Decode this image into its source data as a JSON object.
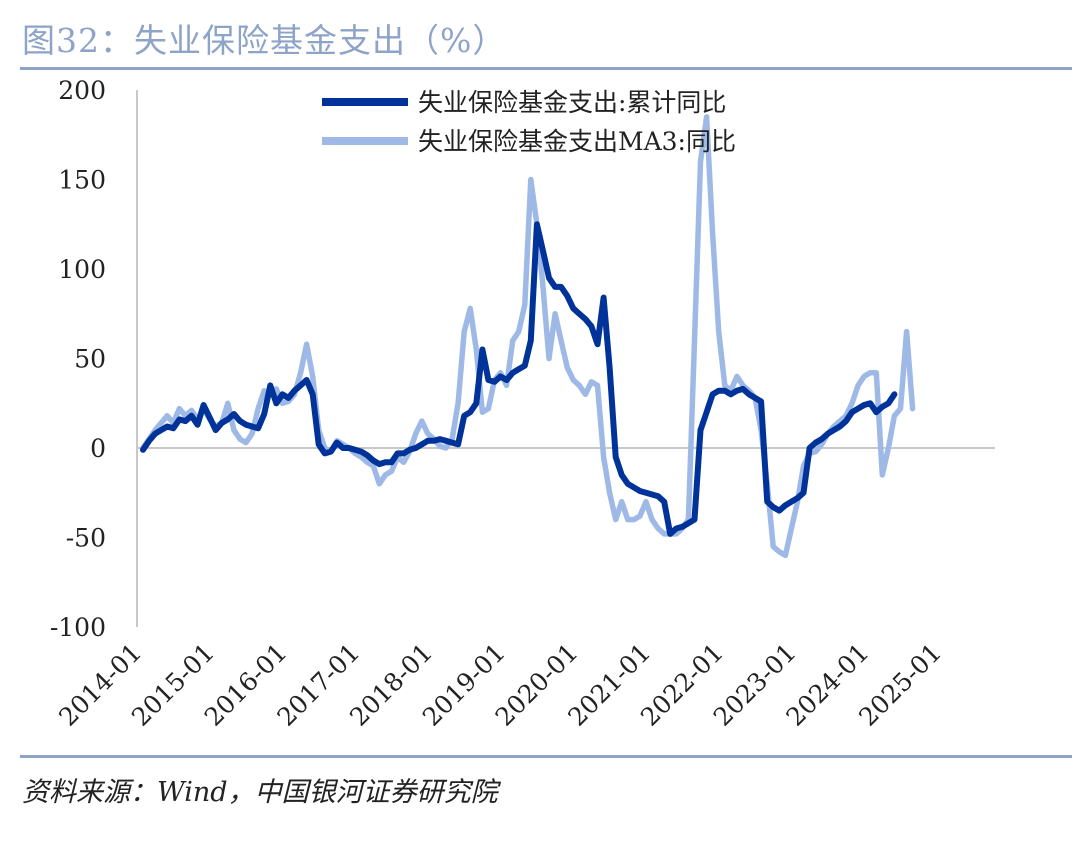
{
  "figure": {
    "title": "图32：失业保险基金支出（%）",
    "source": "资料来源：Wind，中国银河证券研究院"
  },
  "colors": {
    "series1": "#003399",
    "series2": "#9eb9e6",
    "axis": "#c8c8c8",
    "rule": "#8ea3c8"
  },
  "chart_data": {
    "type": "line",
    "title": "",
    "xlabel": "",
    "ylabel": "",
    "ylim": [
      -100,
      200
    ],
    "yticks": [
      "200",
      "150",
      "100",
      "50",
      "0",
      "-50",
      "-100"
    ],
    "xticks": [
      "2014-01",
      "2015-01",
      "2016-01",
      "2017-01",
      "2018-01",
      "2019-01",
      "2020-01",
      "2021-01",
      "2022-01",
      "2023-01",
      "2024-01",
      "2025-01"
    ],
    "legend_position": "top-center",
    "grid": false,
    "x_start": "2014-01",
    "series": [
      {
        "name": "失业保险基金支出:累计同比",
        "values": [
          -1,
          4,
          8,
          10,
          12,
          11,
          16,
          15,
          18,
          13,
          24,
          17,
          10,
          14,
          16,
          19,
          15,
          13,
          12,
          11,
          19,
          35,
          25,
          30,
          28,
          32,
          35,
          38,
          30,
          2,
          -3,
          -2,
          3,
          0,
          0,
          -1,
          -2,
          -4,
          -7,
          -9,
          -8,
          -8,
          -3,
          -3,
          -1,
          0,
          2,
          4,
          4,
          5,
          4,
          3,
          2,
          18,
          20,
          25,
          55,
          38,
          37,
          40,
          38,
          42,
          44,
          46,
          60,
          125,
          110,
          95,
          90,
          90,
          85,
          78,
          75,
          72,
          68,
          58,
          84,
          45,
          -5,
          -15,
          -20,
          -22,
          -24,
          -25,
          -26,
          -27,
          -30,
          -48,
          -45,
          -44,
          -42,
          -40,
          10,
          20,
          30,
          32,
          32,
          30,
          32,
          33,
          30,
          28,
          26,
          -30,
          -33,
          -35,
          -32,
          -30,
          -28,
          -25,
          0,
          3,
          5,
          8,
          10,
          12,
          15,
          20,
          22,
          24,
          25,
          20,
          23,
          25,
          30
        ]
      },
      {
        "name": "失业保险基金支出MA3:同比",
        "values": [
          0,
          5,
          10,
          14,
          18,
          14,
          22,
          18,
          21,
          16,
          22,
          16,
          12,
          14,
          25,
          10,
          5,
          3,
          8,
          22,
          32,
          30,
          33,
          25,
          26,
          30,
          42,
          58,
          40,
          10,
          0,
          -2,
          4,
          2,
          0,
          -3,
          -5,
          -8,
          -10,
          -20,
          -15,
          -13,
          -5,
          -8,
          -2,
          8,
          15,
          8,
          5,
          1,
          0,
          5,
          25,
          65,
          78,
          55,
          20,
          22,
          38,
          42,
          35,
          60,
          65,
          80,
          150,
          125,
          90,
          50,
          75,
          60,
          45,
          38,
          35,
          30,
          37,
          35,
          -5,
          -25,
          -40,
          -30,
          -40,
          -40,
          -38,
          -30,
          -40,
          -45,
          -48,
          -48,
          -48,
          -45,
          -40,
          60,
          160,
          185,
          120,
          65,
          35,
          32,
          40,
          35,
          32,
          28,
          10,
          -20,
          -55,
          -58,
          -60,
          -45,
          -30,
          -10,
          -3,
          -2,
          2,
          8,
          12,
          15,
          18,
          25,
          35,
          40,
          42,
          42,
          -15,
          0,
          18,
          22,
          65,
          22
        ]
      }
    ]
  }
}
